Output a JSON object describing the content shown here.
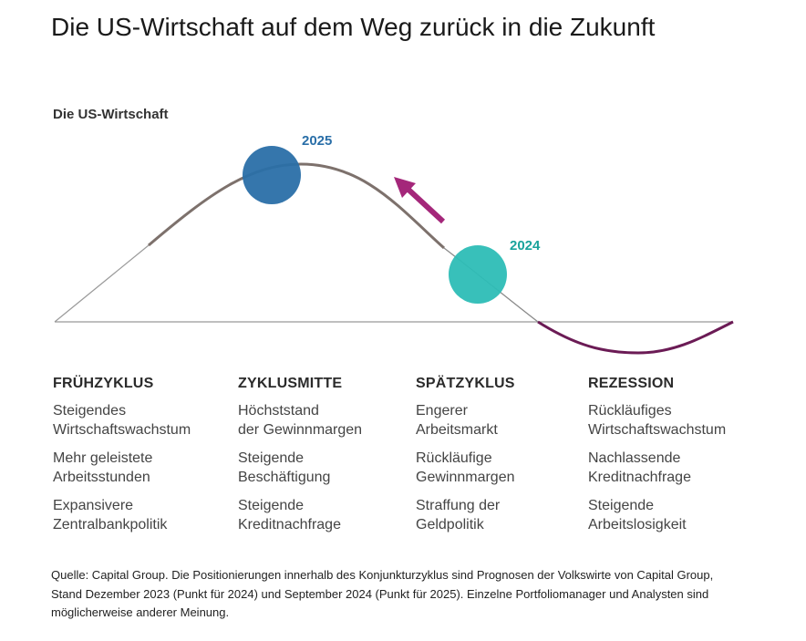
{
  "title": "Die US-Wirtschaft auf dem Weg zurück in die Zukunft",
  "diagram": {
    "subtitle": "Die US-Wirtschaft",
    "points": [
      {
        "year": "2025",
        "color": "#2a6fa8"
      },
      {
        "year": "2024",
        "color": "#2dbdb6"
      }
    ],
    "arrow_color": "#a4277a",
    "curve_color": "#7d716c",
    "recession_color": "#6b1b55",
    "axis_color": "#999999"
  },
  "phases": [
    {
      "heading": "FRÜHZYKLUS",
      "items": [
        "Steigendes\nWirtschaftswachstum",
        "Mehr geleistete\nArbeitsstunden",
        "Expansivere\nZentralbankpolitik"
      ]
    },
    {
      "heading": "ZYKLUSMITTE",
      "items": [
        "Höchststand\nder Gewinnmargen",
        "Steigende\nBeschäftigung",
        "Steigende\nKreditnachfrage"
      ]
    },
    {
      "heading": "SPÄTZYKLUS",
      "items": [
        "Engerer\nArbeitsmarkt",
        "Rückläufige\nGewinnmargen",
        "Straffung der\nGeldpolitik"
      ]
    },
    {
      "heading": "REZESSION",
      "items": [
        "Rückläufiges\nWirtschaftswachstum",
        "Nachlassende\nKreditnachfrage",
        "Steigende\nArbeitslosigkeit"
      ]
    }
  ],
  "source": "Quelle: Capital Group. Die Positionierungen innerhalb des Konjunkturzyklus sind Prognosen der Volkswirte von Capital Group, Stand Dezember 2023 (Punkt für 2024) und September 2024 (Punkt für 2025). Einzelne Portfoliomanager und Analysten sind möglicherweise anderer Meinung."
}
